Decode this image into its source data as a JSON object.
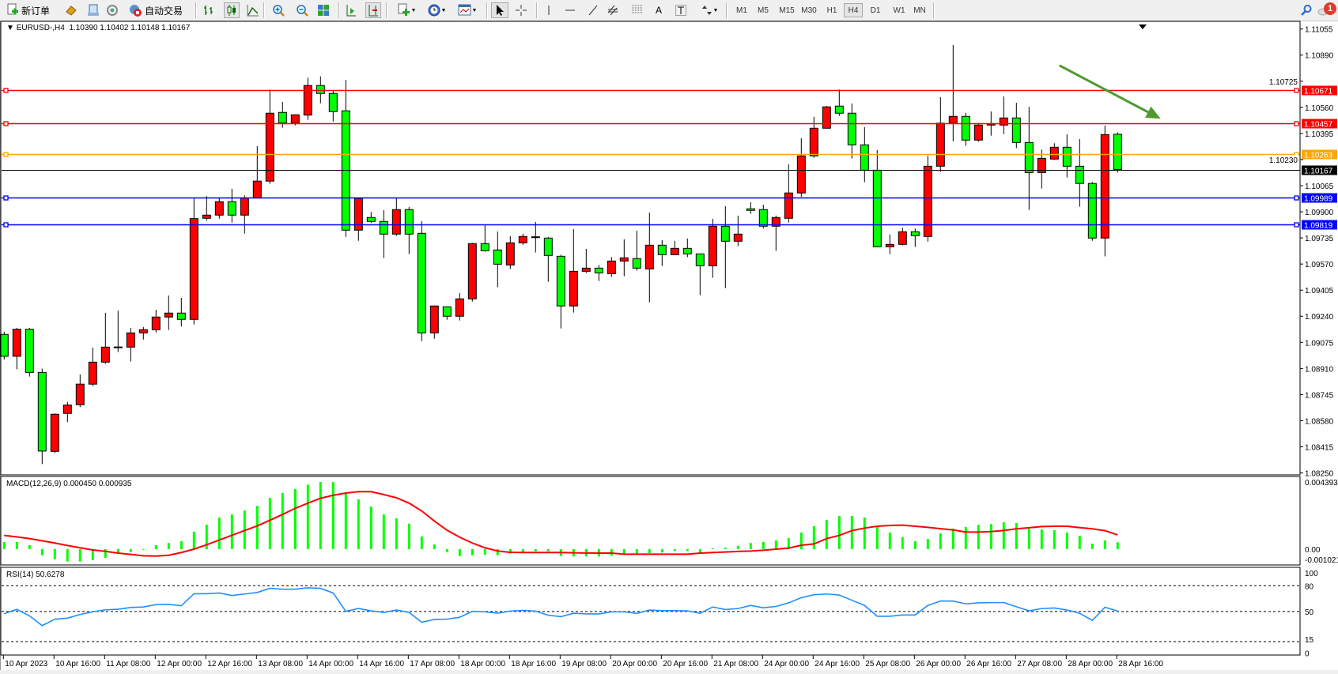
{
  "toolbar": {
    "new_order_label": "新订单",
    "auto_trading_label": "自动交易",
    "icons": [
      "new-order-icon",
      "market-watch-icon",
      "data-window-icon",
      "navigator-icon",
      "auto-trading-icon",
      "bar-chart-icon",
      "candlestick-icon",
      "line-chart-icon",
      "zoom-in-icon",
      "zoom-out-icon",
      "tile-windows-icon",
      "auto-scroll-icon",
      "chart-shift-icon",
      "indicators-icon",
      "periods-icon",
      "templates-icon",
      "cursor-icon",
      "crosshair-icon",
      "vertical-line-icon",
      "horizontal-line-icon",
      "trendline-icon",
      "equidistant-channel-icon",
      "fibonacci-icon",
      "text-icon",
      "text-label-icon",
      "arrows-icon",
      "search-icon",
      "notification-icon"
    ],
    "text_tool_label": "A",
    "timeframes": [
      "M1",
      "M5",
      "M15",
      "M30",
      "H1",
      "H4",
      "D1",
      "W1",
      "MN"
    ],
    "active_timeframe": "H4",
    "notification_count": "1"
  },
  "chart": {
    "symbol": "EURUSD-,H4",
    "ohlc": "1.10390 1.10402 1.10148 1.10167",
    "bull_color": "#ff0000",
    "bear_color": "#00ff00",
    "price_ticks": [
      "1.11055",
      "1.10890",
      "1.10725",
      "1.10560",
      "1.10395",
      "1.10230",
      "1.10065",
      "1.09900",
      "1.09735",
      "1.09570",
      "1.09405",
      "1.09240",
      "1.09075",
      "1.08910",
      "1.08745",
      "1.08580",
      "1.08415",
      "1.08250"
    ],
    "hlines": [
      {
        "price": "1.10671",
        "color": "#ff0000"
      },
      {
        "price": "1.10457",
        "color": "#ff0000"
      },
      {
        "price": "1.10263",
        "color": "#ffa500"
      },
      {
        "price": "1.10167",
        "color": "#000000",
        "bid": true
      },
      {
        "price": "1.09989",
        "color": "#0000ff"
      },
      {
        "price": "1.09819",
        "color": "#0000ff"
      }
    ],
    "arrow": {
      "from": {
        "bar": 83.4,
        "price": 1.10825
      },
      "to": {
        "bar": 91.4,
        "price": 1.10488
      },
      "color": "#4e9a2f"
    },
    "time_labels": [
      "10 Apr 2023",
      "10 Apr 16:00",
      "11 Apr 08:00",
      "12 Apr 00:00",
      "12 Apr 16:00",
      "13 Apr 08:00",
      "14 Apr 00:00",
      "14 Apr 16:00",
      "17 Apr 08:00",
      "18 Apr 00:00",
      "18 Apr 16:00",
      "19 Apr 08:00",
      "20 Apr 00:00",
      "20 Apr 16:00",
      "21 Apr 08:00",
      "24 Apr 00:00",
      "24 Apr 16:00",
      "25 Apr 08:00",
      "26 Apr 00:00",
      "26 Apr 16:00",
      "27 Apr 08:00",
      "28 Apr 00:00",
      "28 Apr 16:00"
    ]
  },
  "chart_data": {
    "type": "candlestick",
    "symbol": "EURUSD-",
    "timeframe": "H4",
    "ylim": [
      1.0825,
      1.11055
    ],
    "ohlc": [
      [
        1.09125,
        1.09142,
        1.08967,
        1.08987
      ],
      [
        1.08987,
        1.09167,
        1.08905,
        1.09158
      ],
      [
        1.09158,
        1.09167,
        1.08859,
        1.08885
      ],
      [
        1.08885,
        1.08909,
        1.08306,
        1.08388
      ],
      [
        1.08386,
        1.08626,
        1.08376,
        1.08621
      ],
      [
        1.08626,
        1.08697,
        1.08571,
        1.08679
      ],
      [
        1.08681,
        1.08872,
        1.08666,
        1.08811
      ],
      [
        1.08811,
        1.09042,
        1.08799,
        1.0895
      ],
      [
        1.0895,
        1.09262,
        1.08939,
        1.09045
      ],
      [
        1.09045,
        1.09275,
        1.09014,
        1.09046
      ],
      [
        1.09045,
        1.09167,
        1.08954,
        1.09135
      ],
      [
        1.09135,
        1.09172,
        1.09093,
        1.09155
      ],
      [
        1.09155,
        1.09281,
        1.09138,
        1.09235
      ],
      [
        1.09235,
        1.09371,
        1.09153,
        1.0926
      ],
      [
        1.0926,
        1.09356,
        1.09175,
        1.0922
      ],
      [
        1.0922,
        1.09987,
        1.09188,
        1.09857
      ],
      [
        1.09859,
        1.09999,
        1.09844,
        1.09879
      ],
      [
        1.09879,
        1.09987,
        1.09857,
        1.09964
      ],
      [
        1.09964,
        1.10045,
        1.09832,
        1.09879
      ],
      [
        1.09879,
        1.10004,
        1.09762,
        1.09987
      ],
      [
        1.09987,
        1.10315,
        1.09985,
        1.10094
      ],
      [
        1.10094,
        1.10673,
        1.10077,
        1.10523
      ],
      [
        1.10528,
        1.10594,
        1.10431,
        1.10461
      ],
      [
        1.10461,
        1.10515,
        1.10446,
        1.10513
      ],
      [
        1.10511,
        1.10747,
        1.10481,
        1.10698
      ],
      [
        1.10698,
        1.10756,
        1.10586,
        1.10648
      ],
      [
        1.10648,
        1.10664,
        1.10471,
        1.10533
      ],
      [
        1.10538,
        1.10734,
        1.09742,
        1.09784
      ],
      [
        1.09784,
        1.09986,
        1.09717,
        1.09984
      ],
      [
        1.09864,
        1.09899,
        1.09829,
        1.09839
      ],
      [
        1.09839,
        1.0991,
        1.09608,
        1.09759
      ],
      [
        1.09759,
        1.0999,
        1.09747,
        1.09914
      ],
      [
        1.09914,
        1.0993,
        1.09633,
        1.09759
      ],
      [
        1.09764,
        1.09841,
        1.09083,
        1.09135
      ],
      [
        1.09135,
        1.09307,
        1.09098,
        1.09305
      ],
      [
        1.093,
        1.09302,
        1.09218,
        1.0924
      ],
      [
        1.0924,
        1.09386,
        1.09213,
        1.0935
      ],
      [
        1.0935,
        1.09704,
        1.09333,
        1.09699
      ],
      [
        1.09699,
        1.09821,
        1.09648,
        1.09654
      ],
      [
        1.09659,
        1.09776,
        1.09423,
        1.09569
      ],
      [
        1.09564,
        1.09746,
        1.09538,
        1.09704
      ],
      [
        1.09704,
        1.09761,
        1.09692,
        1.09744
      ],
      [
        1.09742,
        1.09836,
        1.09643,
        1.0974
      ],
      [
        1.09734,
        1.09741,
        1.09458,
        1.09624
      ],
      [
        1.09619,
        1.09629,
        1.09163,
        1.09305
      ],
      [
        1.09305,
        1.09791,
        1.09263,
        1.09524
      ],
      [
        1.09524,
        1.09666,
        1.09513,
        1.09544
      ],
      [
        1.09544,
        1.09564,
        1.09463,
        1.09514
      ],
      [
        1.09509,
        1.09614,
        1.09488,
        1.09589
      ],
      [
        1.09589,
        1.09726,
        1.09493,
        1.09609
      ],
      [
        1.09604,
        1.09781,
        1.09528,
        1.09544
      ],
      [
        1.09539,
        1.09895,
        1.09328,
        1.09689
      ],
      [
        1.09689,
        1.09721,
        1.09558,
        1.09629
      ],
      [
        1.09629,
        1.09716,
        1.09627,
        1.09669
      ],
      [
        1.09669,
        1.09731,
        1.09613,
        1.09634
      ],
      [
        1.09634,
        1.09636,
        1.09373,
        1.09559
      ],
      [
        1.09559,
        1.09856,
        1.09483,
        1.09809
      ],
      [
        1.09809,
        1.09935,
        1.09418,
        1.09714
      ],
      [
        1.09714,
        1.09876,
        1.09683,
        1.09759
      ],
      [
        1.09919,
        1.0996,
        1.09887,
        1.09909
      ],
      [
        1.09914,
        1.09945,
        1.09794,
        1.09809
      ],
      [
        1.09809,
        1.09876,
        1.09653,
        1.09864
      ],
      [
        1.09859,
        1.102,
        1.09832,
        1.10019
      ],
      [
        1.10019,
        1.10365,
        1.09995,
        1.10253
      ],
      [
        1.10253,
        1.105,
        1.10242,
        1.10428
      ],
      [
        1.10428,
        1.10569,
        1.10426,
        1.10563
      ],
      [
        1.10568,
        1.10673,
        1.10506,
        1.10523
      ],
      [
        1.10523,
        1.10584,
        1.10237,
        1.10323
      ],
      [
        1.10323,
        1.10435,
        1.10087,
        1.10163
      ],
      [
        1.10163,
        1.1029,
        1.09677,
        1.09679
      ],
      [
        1.09679,
        1.09756,
        1.09633,
        1.09694
      ],
      [
        1.09694,
        1.09799,
        1.09688,
        1.09774
      ],
      [
        1.09774,
        1.09794,
        1.09678,
        1.09749
      ],
      [
        1.09744,
        1.10255,
        1.09712,
        1.10188
      ],
      [
        1.10188,
        1.10624,
        1.10152,
        1.1046
      ],
      [
        1.1046,
        1.10954,
        1.10346,
        1.10503
      ],
      [
        1.10503,
        1.10525,
        1.10317,
        1.10353
      ],
      [
        1.10353,
        1.10456,
        1.10343,
        1.10448
      ],
      [
        1.10448,
        1.10534,
        1.10381,
        1.10456
      ],
      [
        1.10448,
        1.10629,
        1.10391,
        1.10493
      ],
      [
        1.10493,
        1.10589,
        1.10302,
        1.10338
      ],
      [
        1.10338,
        1.10563,
        1.09912,
        1.10148
      ],
      [
        1.10148,
        1.10293,
        1.10047,
        1.10238
      ],
      [
        1.10233,
        1.10333,
        1.10227,
        1.10308
      ],
      [
        1.10308,
        1.1039,
        1.10117,
        1.10188
      ],
      [
        1.10188,
        1.1036,
        1.09932,
        1.10079
      ],
      [
        1.10079,
        1.10089,
        1.09717,
        1.09734
      ],
      [
        1.09734,
        1.10445,
        1.09618,
        1.10388
      ],
      [
        1.1039,
        1.10402,
        1.10148,
        1.10167
      ]
    ],
    "macd": {
      "label": "MACD(12,26,9) 0.000450 0.000935",
      "axis_labels": [
        "0.004393",
        "0.00",
        "-0.001021"
      ],
      "ylim": [
        -0.001021,
        0.004393
      ],
      "hist_color": "#00ff00",
      "signal_color": "#ff0000",
      "main": [
        0.00047,
        0.00047,
        0.00026,
        -0.0004,
        -0.00065,
        -0.00081,
        -0.00081,
        -0.00071,
        -0.00057,
        -0.00031,
        -0.00019,
        1e-05,
        0.00026,
        0.0004,
        0.00052,
        0.00115,
        0.0016,
        0.00207,
        0.00227,
        0.00253,
        0.00284,
        0.00336,
        0.00367,
        0.00393,
        0.00422,
        0.00439,
        0.00439,
        0.00362,
        0.00326,
        0.00279,
        0.00227,
        0.00202,
        0.00167,
        0.00083,
        0.00031,
        -0.00019,
        -0.00045,
        -0.0004,
        -0.00036,
        -0.0004,
        -0.00029,
        -0.00019,
        -0.00014,
        -0.00014,
        -0.00045,
        -0.00048,
        -0.00048,
        -0.00048,
        -0.00043,
        -0.00034,
        -0.00031,
        -0.00026,
        -0.00022,
        -0.00012,
        -0.00012,
        -0.00022,
        5e-05,
        0.0001,
        0.00022,
        0.0004,
        0.00047,
        0.00057,
        0.00072,
        0.00109,
        0.0015,
        0.00191,
        0.00217,
        0.00217,
        0.00207,
        0.00146,
        0.00109,
        0.00078,
        0.00052,
        0.00067,
        0.00103,
        0.00134,
        0.00145,
        0.0016,
        0.00165,
        0.00176,
        0.00171,
        0.00134,
        0.00129,
        0.00124,
        0.00109,
        0.00088,
        0.00036,
        0.00057,
        0.00045
      ],
      "signal": [
        0.0009,
        0.0008,
        0.00069,
        0.00055,
        0.0004,
        0.00024,
        9e-05,
        -5e-05,
        -0.00014,
        -0.00026,
        -0.00034,
        -0.00043,
        -0.00045,
        -0.0004,
        -0.00022,
        0.0,
        0.00029,
        0.0006,
        0.00091,
        0.00122,
        0.00152,
        0.00189,
        0.00227,
        0.00267,
        0.00301,
        0.00333,
        0.00353,
        0.00367,
        0.00376,
        0.00376,
        0.00357,
        0.00336,
        0.00301,
        0.0025,
        0.00184,
        0.00124,
        0.00078,
        0.0004,
        9e-05,
        -0.00012,
        -0.00021,
        -0.00022,
        -0.00022,
        -0.00022,
        -0.00022,
        -0.00024,
        -0.00025,
        -0.00026,
        -0.00026,
        -0.00033,
        -0.00033,
        -0.00033,
        -0.00033,
        -0.00033,
        -0.00033,
        -0.00026,
        -0.00022,
        -0.00019,
        -0.00015,
        -0.00012,
        -7e-05,
        0.0,
        7e-05,
        0.00026,
        0.00034,
        0.00069,
        0.0009,
        0.00121,
        0.00138,
        0.0015,
        0.00155,
        0.00157,
        0.0015,
        0.00143,
        0.00134,
        0.00126,
        0.00112,
        0.00112,
        0.00115,
        0.00122,
        0.00133,
        0.0014,
        0.00148,
        0.0015,
        0.0015,
        0.00141,
        0.00133,
        0.00121,
        0.000935
      ]
    },
    "rsi": {
      "label": "RSI(14) 50.6278",
      "axis_labels": [
        "100",
        "80",
        "50",
        "15",
        "0"
      ],
      "levels": [
        80,
        50,
        15
      ],
      "ylim": [
        0,
        100
      ],
      "color": "#1e90ff",
      "values": [
        47.5,
        52.6,
        45,
        33.6,
        41,
        42.3,
        46.6,
        49.6,
        52,
        52.6,
        54.7,
        55.3,
        58,
        58.3,
        56.8,
        70.7,
        70.7,
        71.6,
        68.6,
        70.4,
        72.2,
        77,
        76,
        76,
        77.6,
        77,
        71.6,
        50.2,
        53.5,
        50.8,
        49,
        51.7,
        49,
        37.5,
        40.8,
        41.1,
        43.3,
        50.2,
        49.6,
        48,
        50.5,
        51.4,
        50.5,
        45.7,
        44,
        48,
        47.2,
        47.2,
        49.6,
        49.6,
        47.8,
        51.7,
        51,
        51,
        50.8,
        48,
        55.3,
        52.3,
        53.5,
        57.1,
        54.4,
        55.9,
        60.1,
        66.1,
        69.5,
        70.4,
        69.2,
        63.1,
        57.1,
        44.5,
        44.5,
        46,
        46,
        57.1,
        62.2,
        62.2,
        58.9,
        60.1,
        60.4,
        60.4,
        55.6,
        50.8,
        53.5,
        54.1,
        51.7,
        48,
        39.6,
        55,
        50.6
      ]
    }
  }
}
